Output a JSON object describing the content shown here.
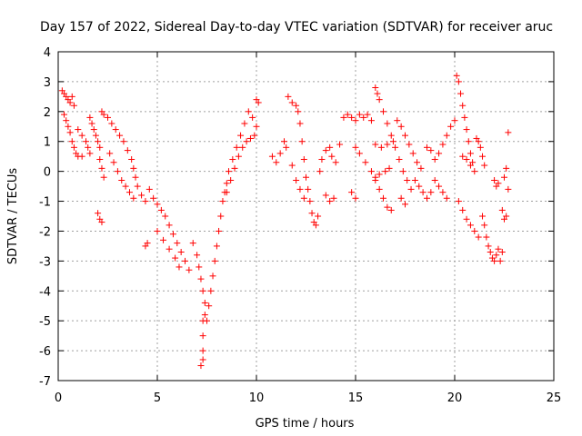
{
  "chart_data": {
    "type": "scatter",
    "title": "Day 157 of 2022, Sidereal Day-to-day VTEC variation (SDTVAR) for receiver aruc",
    "xlabel": "GPS time / hours",
    "ylabel": "SDTVAR / TECUs",
    "xlim": [
      0,
      25
    ],
    "ylim": [
      -7,
      4
    ],
    "xticks": [
      "0",
      "5",
      "10",
      "15",
      "20",
      "25"
    ],
    "yticks": [
      "-7",
      "-6",
      "-5",
      "-4",
      "-3",
      "-2",
      "-1",
      "0",
      "1",
      "2",
      "3",
      "4"
    ],
    "grid": true,
    "marker": "+",
    "color": "#ff0000",
    "series": [
      {
        "name": "SDTVAR",
        "points": [
          [
            0.2,
            2.7
          ],
          [
            0.3,
            2.6
          ],
          [
            0.4,
            2.5
          ],
          [
            0.5,
            2.4
          ],
          [
            0.6,
            2.3
          ],
          [
            0.7,
            2.5
          ],
          [
            0.8,
            2.2
          ],
          [
            0.3,
            1.9
          ],
          [
            0.4,
            1.7
          ],
          [
            0.5,
            1.5
          ],
          [
            0.6,
            1.3
          ],
          [
            0.7,
            1.0
          ],
          [
            0.8,
            0.8
          ],
          [
            0.9,
            0.6
          ],
          [
            1.0,
            0.5
          ],
          [
            1.0,
            1.4
          ],
          [
            1.2,
            1.2
          ],
          [
            1.4,
            1.0
          ],
          [
            1.5,
            0.8
          ],
          [
            1.6,
            0.6
          ],
          [
            1.2,
            0.5
          ],
          [
            1.6,
            1.8
          ],
          [
            1.7,
            1.6
          ],
          [
            1.8,
            1.4
          ],
          [
            1.9,
            1.2
          ],
          [
            2.0,
            1.0
          ],
          [
            2.1,
            0.8
          ],
          [
            2.1,
            0.4
          ],
          [
            2.2,
            0.1
          ],
          [
            2.3,
            -0.2
          ],
          [
            2.0,
            -1.4
          ],
          [
            2.1,
            -1.6
          ],
          [
            2.2,
            -1.7
          ],
          [
            2.2,
            2.0
          ],
          [
            2.3,
            1.9
          ],
          [
            2.5,
            1.8
          ],
          [
            2.7,
            1.6
          ],
          [
            2.9,
            1.4
          ],
          [
            3.1,
            1.2
          ],
          [
            3.3,
            1.0
          ],
          [
            3.5,
            0.7
          ],
          [
            3.7,
            0.4
          ],
          [
            3.8,
            0.1
          ],
          [
            3.9,
            -0.2
          ],
          [
            4.0,
            -0.5
          ],
          [
            4.2,
            -0.8
          ],
          [
            4.4,
            -1.0
          ],
          [
            2.6,
            0.6
          ],
          [
            2.8,
            0.3
          ],
          [
            3.0,
            0.0
          ],
          [
            3.2,
            -0.3
          ],
          [
            3.4,
            -0.5
          ],
          [
            3.6,
            -0.7
          ],
          [
            3.8,
            -0.9
          ],
          [
            4.5,
            -2.4
          ],
          [
            4.4,
            -2.5
          ],
          [
            4.6,
            -0.6
          ],
          [
            4.8,
            -0.9
          ],
          [
            5.0,
            -1.1
          ],
          [
            5.2,
            -1.3
          ],
          [
            5.4,
            -1.5
          ],
          [
            5.6,
            -1.8
          ],
          [
            5.8,
            -2.1
          ],
          [
            6.0,
            -2.4
          ],
          [
            6.2,
            -2.7
          ],
          [
            6.4,
            -3.0
          ],
          [
            6.6,
            -3.3
          ],
          [
            5.0,
            -2.0
          ],
          [
            5.3,
            -2.3
          ],
          [
            5.6,
            -2.6
          ],
          [
            5.9,
            -2.9
          ],
          [
            6.1,
            -3.2
          ],
          [
            6.8,
            -2.4
          ],
          [
            7.0,
            -2.8
          ],
          [
            7.1,
            -3.2
          ],
          [
            7.2,
            -3.6
          ],
          [
            7.3,
            -4.0
          ],
          [
            7.4,
            -4.4
          ],
          [
            7.4,
            -4.8
          ],
          [
            7.3,
            -5.0
          ],
          [
            7.3,
            -5.5
          ],
          [
            7.3,
            -6.0
          ],
          [
            7.3,
            -6.3
          ],
          [
            7.2,
            -6.5
          ],
          [
            7.5,
            -5.0
          ],
          [
            7.6,
            -4.5
          ],
          [
            7.7,
            -4.0
          ],
          [
            7.8,
            -3.5
          ],
          [
            7.9,
            -3.0
          ],
          [
            8.0,
            -2.5
          ],
          [
            8.1,
            -2.0
          ],
          [
            8.2,
            -1.5
          ],
          [
            8.3,
            -1.0
          ],
          [
            8.4,
            -0.7
          ],
          [
            8.5,
            -0.4
          ],
          [
            8.6,
            0.0
          ],
          [
            8.8,
            0.4
          ],
          [
            9.0,
            0.8
          ],
          [
            9.2,
            1.2
          ],
          [
            9.4,
            1.6
          ],
          [
            9.6,
            2.0
          ],
          [
            9.8,
            1.8
          ],
          [
            10.0,
            1.5
          ],
          [
            8.5,
            -0.7
          ],
          [
            8.7,
            -0.3
          ],
          [
            8.9,
            0.1
          ],
          [
            9.1,
            0.5
          ],
          [
            9.3,
            0.8
          ],
          [
            9.5,
            1.0
          ],
          [
            9.7,
            1.1
          ],
          [
            9.9,
            1.2
          ],
          [
            10.0,
            2.4
          ],
          [
            10.1,
            2.3
          ],
          [
            10.8,
            0.5
          ],
          [
            11.0,
            0.3
          ],
          [
            11.2,
            0.6
          ],
          [
            11.4,
            1.0
          ],
          [
            11.6,
            2.5
          ],
          [
            11.8,
            2.3
          ],
          [
            12.0,
            2.2
          ],
          [
            12.1,
            2.0
          ],
          [
            12.2,
            1.6
          ],
          [
            12.3,
            1.0
          ],
          [
            12.4,
            0.4
          ],
          [
            12.5,
            -0.2
          ],
          [
            12.6,
            -0.6
          ],
          [
            12.7,
            -1.0
          ],
          [
            12.8,
            -1.4
          ],
          [
            12.9,
            -1.7
          ],
          [
            13.0,
            -1.8
          ],
          [
            13.1,
            -1.5
          ],
          [
            11.5,
            0.8
          ],
          [
            11.8,
            0.2
          ],
          [
            12.0,
            -0.3
          ],
          [
            12.2,
            -0.6
          ],
          [
            12.4,
            -0.9
          ],
          [
            13.2,
            0.0
          ],
          [
            13.3,
            0.4
          ],
          [
            13.5,
            0.7
          ],
          [
            13.7,
            0.8
          ],
          [
            13.8,
            0.5
          ],
          [
            13.5,
            -0.8
          ],
          [
            13.7,
            -1.0
          ],
          [
            13.9,
            -0.9
          ],
          [
            14.0,
            0.3
          ],
          [
            14.2,
            0.9
          ],
          [
            14.4,
            1.8
          ],
          [
            14.6,
            1.9
          ],
          [
            14.8,
            1.8
          ],
          [
            15.0,
            1.7
          ],
          [
            15.2,
            1.9
          ],
          [
            15.4,
            1.8
          ],
          [
            15.6,
            1.9
          ],
          [
            15.8,
            1.7
          ],
          [
            15.0,
            0.8
          ],
          [
            15.2,
            0.6
          ],
          [
            15.5,
            0.3
          ],
          [
            15.8,
            0.0
          ],
          [
            16.0,
            -0.3
          ],
          [
            16.2,
            -0.6
          ],
          [
            16.4,
            -0.9
          ],
          [
            16.6,
            -1.2
          ],
          [
            16.8,
            -1.3
          ],
          [
            14.8,
            -0.7
          ],
          [
            15.0,
            -0.9
          ],
          [
            16.0,
            0.9
          ],
          [
            16.3,
            0.8
          ],
          [
            16.6,
            0.9
          ],
          [
            16.9,
            1.0
          ],
          [
            16.0,
            -0.2
          ],
          [
            16.2,
            -0.1
          ],
          [
            16.5,
            0.0
          ],
          [
            16.7,
            0.1
          ],
          [
            16.0,
            2.8
          ],
          [
            16.1,
            2.6
          ],
          [
            16.2,
            2.4
          ],
          [
            16.4,
            2.0
          ],
          [
            16.6,
            1.6
          ],
          [
            16.8,
            1.2
          ],
          [
            17.0,
            0.8
          ],
          [
            17.2,
            0.4
          ],
          [
            17.4,
            0.0
          ],
          [
            17.6,
            -0.3
          ],
          [
            17.1,
            1.7
          ],
          [
            17.3,
            1.5
          ],
          [
            17.5,
            1.2
          ],
          [
            17.7,
            0.9
          ],
          [
            17.9,
            0.6
          ],
          [
            18.1,
            0.3
          ],
          [
            18.3,
            0.1
          ],
          [
            17.3,
            -0.9
          ],
          [
            17.5,
            -1.1
          ],
          [
            17.8,
            -0.6
          ],
          [
            18.0,
            -0.3
          ],
          [
            18.2,
            -0.5
          ],
          [
            18.4,
            -0.7
          ],
          [
            18.6,
            -0.9
          ],
          [
            18.8,
            -0.7
          ],
          [
            19.0,
            -0.3
          ],
          [
            19.2,
            -0.5
          ],
          [
            19.4,
            -0.7
          ],
          [
            19.6,
            -0.9
          ],
          [
            18.6,
            0.8
          ],
          [
            18.8,
            0.7
          ],
          [
            19.0,
            0.4
          ],
          [
            19.2,
            0.6
          ],
          [
            19.4,
            0.9
          ],
          [
            19.6,
            1.2
          ],
          [
            19.8,
            1.5
          ],
          [
            20.0,
            1.7
          ],
          [
            20.1,
            3.2
          ],
          [
            20.2,
            3.0
          ],
          [
            20.3,
            2.6
          ],
          [
            20.4,
            2.2
          ],
          [
            20.5,
            1.8
          ],
          [
            20.6,
            1.4
          ],
          [
            20.7,
            1.0
          ],
          [
            20.8,
            0.6
          ],
          [
            20.9,
            0.3
          ],
          [
            20.2,
            -1.0
          ],
          [
            20.4,
            -1.3
          ],
          [
            20.6,
            -1.6
          ],
          [
            20.8,
            -1.8
          ],
          [
            21.0,
            -2.0
          ],
          [
            21.2,
            -2.2
          ],
          [
            20.4,
            0.5
          ],
          [
            20.6,
            0.4
          ],
          [
            20.8,
            0.2
          ],
          [
            21.0,
            0.0
          ],
          [
            21.1,
            1.1
          ],
          [
            21.2,
            1.0
          ],
          [
            21.3,
            0.8
          ],
          [
            21.4,
            0.5
          ],
          [
            21.5,
            0.2
          ],
          [
            21.4,
            -1.5
          ],
          [
            21.5,
            -1.8
          ],
          [
            21.6,
            -2.2
          ],
          [
            21.7,
            -2.5
          ],
          [
            21.8,
            -2.7
          ],
          [
            21.9,
            -2.9
          ],
          [
            22.0,
            -3.0
          ],
          [
            22.1,
            -2.8
          ],
          [
            22.2,
            -2.6
          ],
          [
            22.3,
            -3.0
          ],
          [
            22.4,
            -2.7
          ],
          [
            22.0,
            -0.3
          ],
          [
            22.1,
            -0.5
          ],
          [
            22.2,
            -0.4
          ],
          [
            22.5,
            -1.6
          ],
          [
            22.6,
            -1.5
          ],
          [
            22.4,
            -1.3
          ],
          [
            22.5,
            -0.2
          ],
          [
            22.6,
            0.1
          ],
          [
            22.7,
            -0.6
          ],
          [
            22.7,
            1.3
          ]
        ]
      }
    ]
  }
}
